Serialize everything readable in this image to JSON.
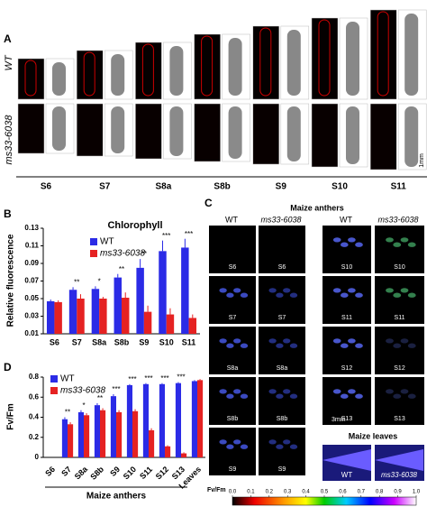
{
  "panel_labels": [
    "A",
    "B",
    "C",
    "D"
  ],
  "panel_a": {
    "stages": [
      "S6",
      "S7",
      "S8a",
      "S8b",
      "S9",
      "S10",
      "S11"
    ],
    "rows": [
      "WT",
      "ms33-6038"
    ],
    "scale": "1mm"
  },
  "panel_c": {
    "title": "Maize anthers",
    "columns": [
      "WT",
      "ms33-6038",
      "WT",
      "ms33-6038"
    ],
    "left_stages": [
      "S6",
      "S7",
      "S8a",
      "S8b",
      "S9"
    ],
    "right_stages": [
      "S10",
      "S11",
      "S12",
      "S13"
    ],
    "scale": "3mm",
    "leaves_title": "Maize leaves",
    "leaves_labels": [
      "WT",
      "ms33-6038"
    ],
    "colorbar": {
      "label": "Fv/Fm",
      "lim": [
        0,
        1
      ],
      "ticks": [
        {
          "value": 0,
          "label": "0.0"
        },
        0.1,
        0.2,
        0.3,
        0.4,
        0.5,
        0.6,
        0.7,
        0.8,
        0.9,
        {
          "value": 1,
          "label": "1.0"
        }
      ]
    }
  },
  "chart_data": [
    {
      "type": "bar",
      "title": "Chlorophyll",
      "y_label": "Relative fluorescence",
      "categories": [
        "S6",
        "S7",
        "S8a",
        "S8b",
        "S9",
        "S10",
        "S11"
      ],
      "series": [
        {
          "name": "WT",
          "color": "#2b2be6",
          "values": [
            0.047,
            0.06,
            0.061,
            0.074,
            0.085,
            0.104,
            0.108
          ],
          "errors": [
            0.002,
            0.003,
            0.003,
            0.004,
            0.01,
            0.012,
            0.01
          ]
        },
        {
          "name": "ms33-6038",
          "color": "#e52222",
          "values": [
            0.046,
            0.05,
            0.05,
            0.051,
            0.035,
            0.032,
            0.028
          ],
          "errors": [
            0.002,
            0.005,
            0.002,
            0.006,
            0.007,
            0.007,
            0.004
          ]
        }
      ],
      "annotations": [
        null,
        "**",
        "*",
        "**",
        "**",
        "***",
        "***"
      ],
      "ylim": [
        0.01,
        0.13
      ],
      "yticks": [
        0.01,
        0.03,
        0.05,
        0.07,
        0.09,
        0.11,
        0.13
      ],
      "legend": "upper left"
    },
    {
      "type": "bar",
      "y_label": "Fv/Fm",
      "x_label": "Maize anthers",
      "categories": [
        "S6",
        "S7",
        "S8a",
        "S8b",
        "S9",
        "S10",
        "S11",
        "S12",
        "S13",
        "Leaves"
      ],
      "series": [
        {
          "name": "WT",
          "color": "#2b2be6",
          "values": [
            0,
            0.38,
            0.45,
            0.52,
            0.61,
            0.72,
            0.73,
            0.73,
            0.74,
            0.76
          ],
          "errors": [
            0,
            0.02,
            0.02,
            0.02,
            0.02,
            0.01,
            0.01,
            0.01,
            0.01,
            0.01
          ]
        },
        {
          "name": "ms33-6038",
          "color": "#e52222",
          "values": [
            0,
            0.33,
            0.42,
            0.47,
            0.45,
            0.46,
            0.27,
            0.11,
            0.04,
            0.77
          ],
          "errors": [
            0,
            0.02,
            0.02,
            0.02,
            0.02,
            0.02,
            0.02,
            0.01,
            0.01,
            0.01
          ]
        }
      ],
      "annotations": [
        null,
        "**",
        "*",
        "**",
        "***",
        "***",
        "***",
        "***",
        "***",
        null
      ],
      "ylim": [
        0,
        0.8
      ],
      "yticks": [
        0,
        0.2,
        0.4,
        0.6,
        0.8
      ],
      "legend": "upper left"
    }
  ]
}
